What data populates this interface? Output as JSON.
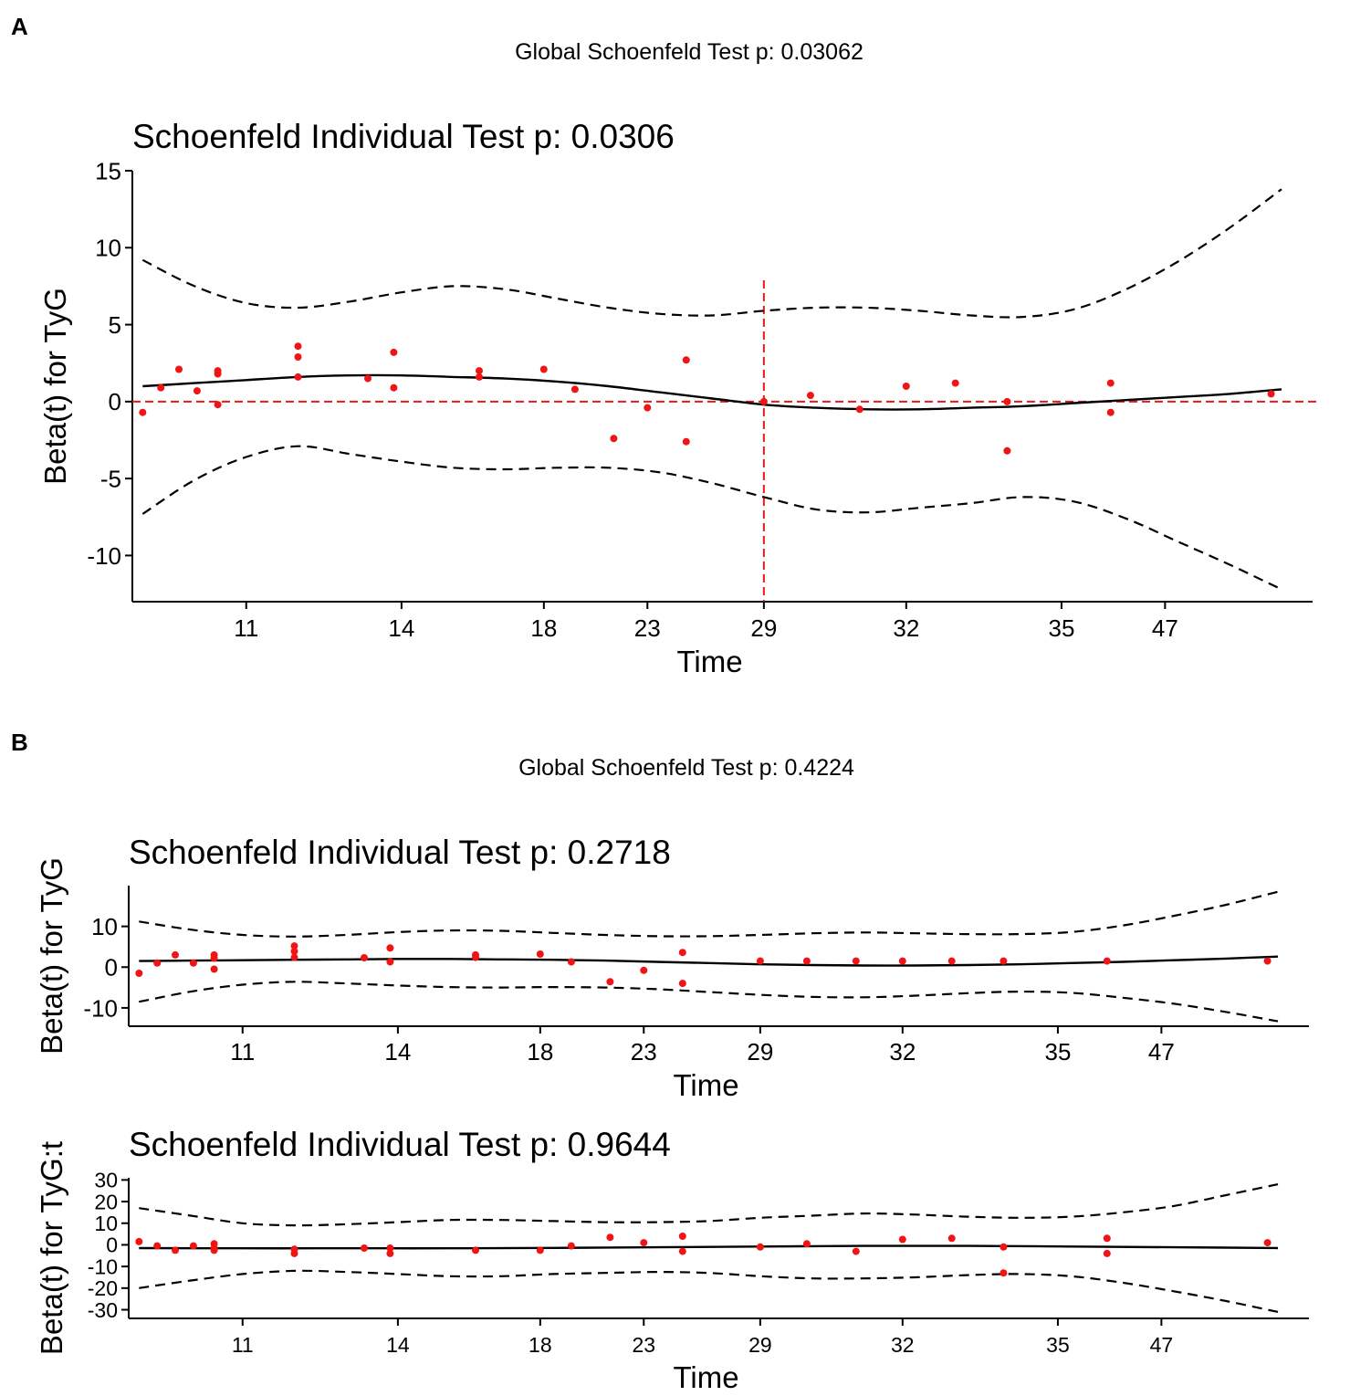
{
  "panels": [
    {
      "letter": "A",
      "global_title": "Global Schoenfeld Test p: 0.03062",
      "plots": [
        {
          "title": "Schoenfeld Individual Test p: 0.0306",
          "ylabel": "Beta(t) for TyG",
          "xlabel": "Time"
        }
      ]
    },
    {
      "letter": "B",
      "global_title": "Global Schoenfeld Test p: 0.4224",
      "plots": [
        {
          "title": "Schoenfeld Individual Test p: 0.2718",
          "ylabel": "Beta(t) for TyG",
          "xlabel": "Time"
        },
        {
          "title": "Schoenfeld Individual Test p: 0.9644",
          "ylabel": "Beta(t) for TyG:t",
          "xlabel": "Time"
        }
      ]
    }
  ],
  "chart_data": [
    {
      "type": "scatter",
      "panel": "A",
      "title": "Schoenfeld Individual Test p: 0.0306",
      "xlabel": "Time",
      "ylabel": "Beta(t) for TyG",
      "x_scale": "rank (transformed time)",
      "xlim": [
        0.8,
        23.6
      ],
      "ylim": [
        -13,
        15
      ],
      "x_ticks": [
        {
          "pos": 3,
          "label": "11"
        },
        {
          "pos": 6,
          "label": "14"
        },
        {
          "pos": 8.75,
          "label": "18"
        },
        {
          "pos": 10.75,
          "label": "23"
        },
        {
          "pos": 13,
          "label": "29"
        },
        {
          "pos": 15.75,
          "label": "32"
        },
        {
          "pos": 18.75,
          "label": "35"
        },
        {
          "pos": 20.75,
          "label": "47"
        }
      ],
      "y_ticks": [
        {
          "v": 15,
          "label": "15"
        },
        {
          "v": 10,
          "label": "10"
        },
        {
          "v": 5,
          "label": "5"
        },
        {
          "v": 0,
          "label": "0"
        },
        {
          "v": -5,
          "label": "-5"
        },
        {
          "v": -10,
          "label": "-10"
        }
      ],
      "ref_hline": 0,
      "ref_vline": 13,
      "ref_color": "#e8191a",
      "points": [
        [
          1,
          -0.7
        ],
        [
          1.35,
          0.9
        ],
        [
          1.7,
          2.1
        ],
        [
          2.05,
          0.7
        ],
        [
          2.45,
          2.0
        ],
        [
          2.45,
          1.8
        ],
        [
          2.45,
          -0.2
        ],
        [
          4,
          3.6
        ],
        [
          4,
          2.9
        ],
        [
          4,
          1.6
        ],
        [
          5.35,
          1.5
        ],
        [
          5.85,
          3.2
        ],
        [
          5.85,
          0.9
        ],
        [
          7.5,
          2.0
        ],
        [
          7.5,
          1.6
        ],
        [
          8.75,
          2.1
        ],
        [
          9.35,
          0.8
        ],
        [
          10.1,
          -2.4
        ],
        [
          10.75,
          -0.4
        ],
        [
          11.5,
          2.7
        ],
        [
          11.5,
          -2.6
        ],
        [
          13,
          0
        ],
        [
          13.9,
          0.4
        ],
        [
          14.85,
          -0.5
        ],
        [
          15.75,
          1.0
        ],
        [
          16.7,
          1.2
        ],
        [
          17.7,
          0
        ],
        [
          17.7,
          -3.2
        ],
        [
          19.7,
          1.2
        ],
        [
          19.7,
          -0.7
        ],
        [
          22.8,
          0.5
        ]
      ],
      "smooth": [
        [
          1,
          1.0
        ],
        [
          2,
          1.2
        ],
        [
          3,
          1.4
        ],
        [
          4,
          1.6
        ],
        [
          5,
          1.7
        ],
        [
          6,
          1.7
        ],
        [
          7,
          1.6
        ],
        [
          8,
          1.5
        ],
        [
          9,
          1.3
        ],
        [
          10,
          1.0
        ],
        [
          11,
          0.6
        ],
        [
          12,
          0.2
        ],
        [
          13,
          -0.2
        ],
        [
          14,
          -0.4
        ],
        [
          15,
          -0.5
        ],
        [
          16,
          -0.5
        ],
        [
          17,
          -0.4
        ],
        [
          18,
          -0.3
        ],
        [
          19,
          -0.1
        ],
        [
          20,
          0.1
        ],
        [
          21,
          0.3
        ],
        [
          22,
          0.5
        ],
        [
          23,
          0.8
        ]
      ],
      "upper_ci": [
        [
          1,
          9.2
        ],
        [
          2,
          7.5
        ],
        [
          3,
          6.4
        ],
        [
          4,
          6.1
        ],
        [
          5,
          6.5
        ],
        [
          6,
          7.1
        ],
        [
          7,
          7.5
        ],
        [
          8,
          7.3
        ],
        [
          9,
          6.7
        ],
        [
          10,
          6.1
        ],
        [
          11,
          5.7
        ],
        [
          12,
          5.6
        ],
        [
          13,
          5.9
        ],
        [
          14,
          6.1
        ],
        [
          15,
          6.1
        ],
        [
          16,
          5.9
        ],
        [
          17,
          5.6
        ],
        [
          18,
          5.5
        ],
        [
          19,
          6.0
        ],
        [
          20,
          7.3
        ],
        [
          21,
          9.1
        ],
        [
          22,
          11.3
        ],
        [
          23,
          13.8
        ]
      ],
      "lower_ci": [
        [
          1,
          -7.3
        ],
        [
          2,
          -5.1
        ],
        [
          3,
          -3.6
        ],
        [
          4,
          -2.9
        ],
        [
          5,
          -3.4
        ],
        [
          6,
          -3.9
        ],
        [
          7,
          -4.3
        ],
        [
          8,
          -4.4
        ],
        [
          9,
          -4.3
        ],
        [
          10,
          -4.3
        ],
        [
          11,
          -4.6
        ],
        [
          12,
          -5.3
        ],
        [
          13,
          -6.2
        ],
        [
          14,
          -7.0
        ],
        [
          15,
          -7.2
        ],
        [
          16,
          -6.9
        ],
        [
          17,
          -6.6
        ],
        [
          18,
          -6.2
        ],
        [
          19,
          -6.5
        ],
        [
          20,
          -7.6
        ],
        [
          21,
          -9.1
        ],
        [
          22,
          -10.6
        ],
        [
          23,
          -12.2
        ]
      ]
    },
    {
      "type": "scatter",
      "panel": "B",
      "title": "Schoenfeld Individual Test p: 0.2718",
      "xlabel": "Time",
      "ylabel": "Beta(t) for TyG",
      "x_scale": "rank (transformed time)",
      "xlim": [
        0.8,
        23.6
      ],
      "ylim": [
        -14.5,
        20
      ],
      "x_ticks": [
        {
          "pos": 3,
          "label": "11"
        },
        {
          "pos": 6,
          "label": "14"
        },
        {
          "pos": 8.75,
          "label": "18"
        },
        {
          "pos": 10.75,
          "label": "23"
        },
        {
          "pos": 13,
          "label": "29"
        },
        {
          "pos": 15.75,
          "label": "32"
        },
        {
          "pos": 18.75,
          "label": "35"
        },
        {
          "pos": 20.75,
          "label": "47"
        }
      ],
      "y_ticks": [
        {
          "v": 10,
          "label": "10"
        },
        {
          "v": 0,
          "label": "0"
        },
        {
          "v": -10,
          "label": "-10"
        }
      ],
      "points": [
        [
          1,
          -1.5
        ],
        [
          1.35,
          1.0
        ],
        [
          1.7,
          3.0
        ],
        [
          2.05,
          1.0
        ],
        [
          2.45,
          3.0
        ],
        [
          2.45,
          2.2
        ],
        [
          2.45,
          -0.5
        ],
        [
          4,
          5.2
        ],
        [
          4,
          3.9
        ],
        [
          4,
          2.4
        ],
        [
          5.35,
          2.3
        ],
        [
          5.85,
          4.7
        ],
        [
          5.85,
          1.3
        ],
        [
          7.5,
          3.0
        ],
        [
          7.5,
          2.4
        ],
        [
          8.75,
          3.2
        ],
        [
          9.35,
          1.3
        ],
        [
          10.1,
          -3.6
        ],
        [
          10.75,
          -0.8
        ],
        [
          11.5,
          3.6
        ],
        [
          11.5,
          -4.0
        ],
        [
          13,
          1.5
        ],
        [
          13.9,
          1.5
        ],
        [
          14.85,
          1.5
        ],
        [
          15.75,
          1.5
        ],
        [
          16.7,
          1.5
        ],
        [
          17.7,
          1.5
        ],
        [
          19.7,
          1.5
        ],
        [
          22.8,
          1.5
        ]
      ],
      "smooth": [
        [
          1,
          1.5
        ],
        [
          2,
          1.6
        ],
        [
          3,
          1.7
        ],
        [
          4,
          1.8
        ],
        [
          5,
          1.9
        ],
        [
          6,
          2.0
        ],
        [
          7,
          2.0
        ],
        [
          8,
          1.9
        ],
        [
          9,
          1.8
        ],
        [
          10,
          1.6
        ],
        [
          11,
          1.3
        ],
        [
          12,
          1.0
        ],
        [
          13,
          0.7
        ],
        [
          14,
          0.5
        ],
        [
          15,
          0.4
        ],
        [
          16,
          0.4
        ],
        [
          17,
          0.5
        ],
        [
          18,
          0.7
        ],
        [
          19,
          1.0
        ],
        [
          20,
          1.3
        ],
        [
          21,
          1.7
        ],
        [
          22,
          2.1
        ],
        [
          23,
          2.6
        ]
      ],
      "upper_ci": [
        [
          1,
          11.2
        ],
        [
          2,
          9.2
        ],
        [
          3,
          7.9
        ],
        [
          4,
          7.5
        ],
        [
          5,
          7.9
        ],
        [
          6,
          8.6
        ],
        [
          7,
          9.0
        ],
        [
          8,
          8.9
        ],
        [
          9,
          8.4
        ],
        [
          10,
          7.9
        ],
        [
          11,
          7.6
        ],
        [
          12,
          7.6
        ],
        [
          13,
          7.9
        ],
        [
          14,
          8.3
        ],
        [
          15,
          8.5
        ],
        [
          16,
          8.3
        ],
        [
          17,
          8.1
        ],
        [
          18,
          8.1
        ],
        [
          19,
          8.6
        ],
        [
          20,
          10.2
        ],
        [
          21,
          12.6
        ],
        [
          22,
          15.3
        ],
        [
          23,
          18.5
        ]
      ],
      "lower_ci": [
        [
          1,
          -8.5
        ],
        [
          2,
          -6.0
        ],
        [
          3,
          -4.3
        ],
        [
          4,
          -3.6
        ],
        [
          5,
          -4.0
        ],
        [
          6,
          -4.5
        ],
        [
          7,
          -4.9
        ],
        [
          8,
          -5.0
        ],
        [
          9,
          -4.9
        ],
        [
          10,
          -5.0
        ],
        [
          11,
          -5.4
        ],
        [
          12,
          -6.1
        ],
        [
          13,
          -6.8
        ],
        [
          14,
          -7.3
        ],
        [
          15,
          -7.4
        ],
        [
          16,
          -7.0
        ],
        [
          17,
          -6.4
        ],
        [
          18,
          -6.0
        ],
        [
          19,
          -6.3
        ],
        [
          20,
          -7.5
        ],
        [
          21,
          -9.0
        ],
        [
          22,
          -11.0
        ],
        [
          23,
          -13.3
        ]
      ]
    },
    {
      "type": "scatter",
      "panel": "B",
      "title": "Schoenfeld Individual Test p: 0.9644",
      "xlabel": "Time",
      "ylabel": "Beta(t) for TyG:t",
      "x_scale": "rank (transformed time)",
      "xlim": [
        0.8,
        23.6
      ],
      "ylim": [
        -34,
        31
      ],
      "x_ticks": [
        {
          "pos": 3,
          "label": "11"
        },
        {
          "pos": 6,
          "label": "14"
        },
        {
          "pos": 8.75,
          "label": "18"
        },
        {
          "pos": 10.75,
          "label": "23"
        },
        {
          "pos": 13,
          "label": "29"
        },
        {
          "pos": 15.75,
          "label": "32"
        },
        {
          "pos": 18.75,
          "label": "35"
        },
        {
          "pos": 20.75,
          "label": "47"
        }
      ],
      "y_ticks": [
        {
          "v": 30,
          "label": "30"
        },
        {
          "v": 20,
          "label": "20"
        },
        {
          "v": 10,
          "label": "10"
        },
        {
          "v": 0,
          "label": "0"
        },
        {
          "v": -10,
          "label": "-10"
        },
        {
          "v": -20,
          "label": "-20"
        },
        {
          "v": -30,
          "label": "-30"
        }
      ],
      "points": [
        [
          1,
          1.5
        ],
        [
          1.35,
          -0.5
        ],
        [
          1.7,
          -2.5
        ],
        [
          2.05,
          -0.5
        ],
        [
          2.45,
          0.5
        ],
        [
          2.45,
          -1.5
        ],
        [
          2.45,
          -2.5
        ],
        [
          4,
          -2.0
        ],
        [
          4,
          -4.0
        ],
        [
          5.35,
          -1.5
        ],
        [
          5.85,
          -1.5
        ],
        [
          5.85,
          -4.0
        ],
        [
          7.5,
          -2.5
        ],
        [
          8.75,
          -2.5
        ],
        [
          9.35,
          -0.5
        ],
        [
          10.1,
          3.5
        ],
        [
          10.75,
          1.0
        ],
        [
          11.5,
          4.0
        ],
        [
          11.5,
          -3.0
        ],
        [
          13,
          -1.0
        ],
        [
          13.9,
          0.5
        ],
        [
          14.85,
          -3.0
        ],
        [
          15.75,
          2.5
        ],
        [
          16.7,
          3.0
        ],
        [
          17.7,
          -1.0
        ],
        [
          17.7,
          -13.0
        ],
        [
          19.7,
          3.0
        ],
        [
          19.7,
          -4.0
        ],
        [
          22.8,
          1.0
        ]
      ],
      "smooth": [
        [
          1,
          -1.5
        ],
        [
          3,
          -1.6
        ],
        [
          5,
          -1.6
        ],
        [
          7,
          -1.6
        ],
        [
          9,
          -1.4
        ],
        [
          11,
          -1.1
        ],
        [
          13,
          -0.8
        ],
        [
          15,
          -0.5
        ],
        [
          17,
          -0.5
        ],
        [
          19,
          -0.8
        ],
        [
          21,
          -1.1
        ],
        [
          23,
          -1.5
        ]
      ],
      "upper_ci": [
        [
          1,
          17.0
        ],
        [
          2,
          13.5
        ],
        [
          3,
          10.0
        ],
        [
          4,
          9.0
        ],
        [
          5,
          9.5
        ],
        [
          6,
          10.5
        ],
        [
          7,
          11.5
        ],
        [
          8,
          11.5
        ],
        [
          9,
          11.0
        ],
        [
          10,
          10.5
        ],
        [
          11,
          10.5
        ],
        [
          12,
          11.0
        ],
        [
          13,
          12.5
        ],
        [
          14,
          13.5
        ],
        [
          15,
          14.5
        ],
        [
          16,
          14.0
        ],
        [
          17,
          13.0
        ],
        [
          18,
          12.5
        ],
        [
          19,
          13.0
        ],
        [
          20,
          15.0
        ],
        [
          21,
          18.0
        ],
        [
          22,
          23.0
        ],
        [
          23,
          28.0
        ]
      ],
      "lower_ci": [
        [
          1,
          -20.0
        ],
        [
          2,
          -16.5
        ],
        [
          3,
          -13.5
        ],
        [
          4,
          -12.0
        ],
        [
          5,
          -12.5
        ],
        [
          6,
          -13.5
        ],
        [
          7,
          -14.5
        ],
        [
          8,
          -14.5
        ],
        [
          9,
          -13.5
        ],
        [
          10,
          -13.0
        ],
        [
          11,
          -12.5
        ],
        [
          12,
          -13.0
        ],
        [
          13,
          -14.5
        ],
        [
          14,
          -15.5
        ],
        [
          15,
          -15.5
        ],
        [
          16,
          -15.0
        ],
        [
          17,
          -14.0
        ],
        [
          18,
          -13.5
        ],
        [
          19,
          -14.5
        ],
        [
          20,
          -17.5
        ],
        [
          21,
          -21.5
        ],
        [
          22,
          -26.0
        ],
        [
          23,
          -31.0
        ]
      ]
    }
  ]
}
